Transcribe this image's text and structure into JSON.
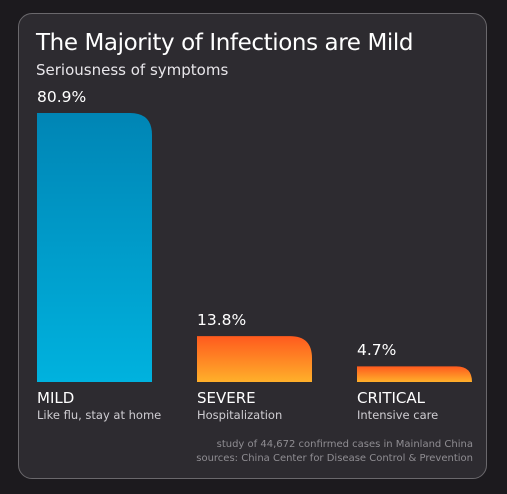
{
  "title": "The Majority of Infections are Mild",
  "subtitle": "Seriousness of symptoms",
  "footer": {
    "line1": "study of 44,672 confirmed cases in Mainland China",
    "line2": "sources: China Center for Disease Control & Prevention"
  },
  "colors": {
    "background": "#2d2b30",
    "mild_gradient": [
      "#0085b5",
      "#00b2de"
    ],
    "severe_gradient": [
      "#ff5a1e",
      "#ffb02a"
    ]
  },
  "chart_data": {
    "type": "bar",
    "categories": [
      "MILD",
      "SEVERE",
      "CRITICAL"
    ],
    "descriptions": [
      "Like flu, stay at home",
      "Hospitalization",
      "Intensive care"
    ],
    "values": [
      80.9,
      13.8,
      4.7
    ],
    "value_labels": [
      "80.9%",
      "13.8%",
      "4.7%"
    ],
    "title": "The Majority of Infections are Mild",
    "subtitle": "Seriousness of symptoms",
    "ylim": [
      0,
      80.9
    ],
    "grid": false
  }
}
